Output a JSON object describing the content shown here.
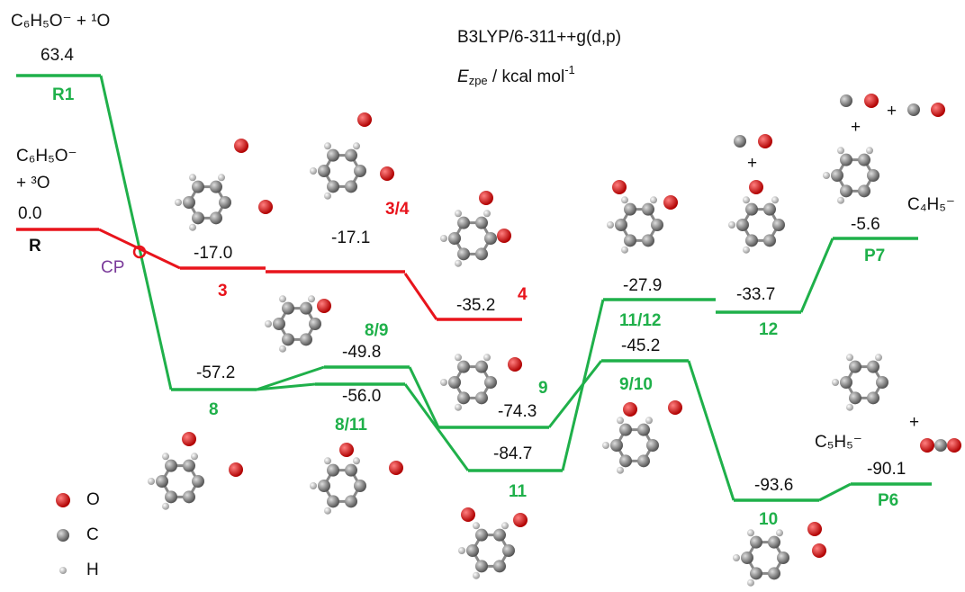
{
  "header": {
    "method": "B3LYP/6-311++g(d,p)",
    "energy_symbol": "E",
    "energy_subscript": "zpe",
    "energy_unit": " / kcal mol",
    "energy_unit_superscript": "-1"
  },
  "species": {
    "reactant_singlet": "C₆H₅O⁻ + ¹O",
    "reactant_triplet_1": "C₆H₅O⁻",
    "reactant_triplet_2": "+ ³O",
    "p7_fragment": "C₄H₅⁻",
    "p6_fragment": "C₅H₅⁻"
  },
  "plus_signs": [
    "+",
    "+",
    "+",
    "+"
  ],
  "crossing_point": "CP",
  "levels": [
    {
      "label": "R1",
      "energy": "63.4"
    },
    {
      "label": "R",
      "energy": "0.0"
    },
    {
      "label": "3",
      "energy": "-17.0"
    },
    {
      "label": "3/4",
      "energy": "-17.1"
    },
    {
      "label": "4",
      "energy": "-35.2"
    },
    {
      "label": "8",
      "energy": "-57.2"
    },
    {
      "label": "8/9",
      "energy": "-49.8"
    },
    {
      "label": "8/11",
      "energy": "-56.0"
    },
    {
      "label": "9",
      "energy": "-74.3"
    },
    {
      "label": "11",
      "energy": "-84.7"
    },
    {
      "label": "9/10",
      "energy": "-45.2"
    },
    {
      "label": "11/12",
      "energy": "-27.9"
    },
    {
      "label": "12",
      "energy": "-33.7"
    },
    {
      "label": "P7",
      "energy": "-5.6"
    },
    {
      "label": "10",
      "energy": "-93.6"
    },
    {
      "label": "P6",
      "energy": "-90.1"
    }
  ],
  "legend": [
    "O",
    "C",
    "H"
  ]
}
